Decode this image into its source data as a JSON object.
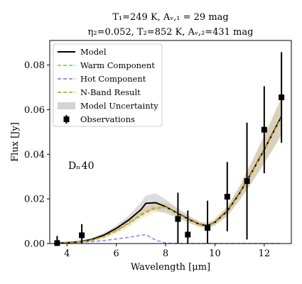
{
  "chart_data": {
    "type": "line",
    "title_line1": "T₁=249 K, Aᵥ,₁ = 29 mag",
    "title_line2": "η₂=0.052, T₂=852 K, Aᵥ,₂=431 mag",
    "xlabel": "Wavelength [μm]",
    "ylabel": "Flux [Jy]",
    "xlim": [
      3.3,
      13.1
    ],
    "ylim": [
      0,
      0.091
    ],
    "xticks": [
      4,
      6,
      8,
      10,
      12
    ],
    "yticks": [
      0.0,
      0.02,
      0.04,
      0.06,
      0.08
    ],
    "ytick_labels": [
      "0.00",
      "0.02",
      "0.04",
      "0.06",
      "0.08"
    ],
    "annotation": "Dₙ 40",
    "legend_position": "top-left",
    "legend": [
      {
        "label": "Model",
        "style": "solid",
        "color": "#000000"
      },
      {
        "label": "Warm Component",
        "style": "dashed",
        "color": "#7fc97f"
      },
      {
        "label": "Hot Component",
        "style": "dashed",
        "color": "#8888ee"
      },
      {
        "label": "N-Band Result",
        "style": "dashed",
        "color": "#d4a017"
      },
      {
        "label": "Model Uncertainty",
        "style": "patch",
        "color": "#c0c0c0"
      },
      {
        "label": "Observations",
        "style": "errorbar",
        "color": "#000000"
      }
    ],
    "model": {
      "x": [
        3.6,
        4.0,
        4.5,
        5.0,
        5.5,
        6.0,
        6.5,
        7.0,
        7.2,
        7.6,
        8.0,
        8.5,
        9.0,
        9.4,
        9.7,
        10.0,
        10.5,
        11.0,
        11.5,
        12.0,
        12.7
      ],
      "y": [
        0.0002,
        0.0004,
        0.0008,
        0.0018,
        0.0038,
        0.0068,
        0.0105,
        0.0152,
        0.018,
        0.0183,
        0.0165,
        0.0135,
        0.0105,
        0.0085,
        0.008,
        0.0095,
        0.0145,
        0.0225,
        0.032,
        0.042,
        0.057
      ]
    },
    "warm_component": {
      "x": [
        3.6,
        4.0,
        4.5,
        5.0,
        5.5,
        6.0,
        6.5,
        7.0,
        7.5,
        8.0,
        8.5,
        9.0,
        9.4,
        9.7,
        10.0,
        10.5,
        11.0,
        11.5,
        12.0,
        12.7
      ],
      "y": [
        0.0001,
        0.0003,
        0.0006,
        0.0014,
        0.003,
        0.0055,
        0.0088,
        0.0125,
        0.0155,
        0.0162,
        0.0135,
        0.0105,
        0.0085,
        0.008,
        0.0095,
        0.0145,
        0.0225,
        0.032,
        0.042,
        0.057
      ]
    },
    "hot_component": {
      "x": [
        3.6,
        4.5,
        5.5,
        6.5,
        7.2,
        7.6,
        8.0,
        8.5,
        9.0,
        10.0,
        11.0,
        12.0,
        12.7
      ],
      "y": [
        0.0001,
        0.0004,
        0.0013,
        0.0028,
        0.004,
        0.0015,
        0.0002,
        0.0,
        0.0,
        0.0,
        0.0,
        0.0,
        0.0
      ]
    },
    "nband_result": {
      "x": [
        3.6,
        4.0,
        4.5,
        5.0,
        5.5,
        6.0,
        6.5,
        7.0,
        7.5,
        8.0,
        8.5,
        9.0,
        9.4,
        9.7,
        10.0,
        10.5,
        11.0,
        11.5,
        12.0,
        12.7
      ],
      "y": [
        0.0002,
        0.0003,
        0.0007,
        0.0015,
        0.0032,
        0.0058,
        0.0092,
        0.013,
        0.0158,
        0.0163,
        0.0133,
        0.0103,
        0.0084,
        0.0079,
        0.0094,
        0.0143,
        0.0222,
        0.0318,
        0.0418,
        0.0565
      ]
    },
    "model_uncertainty": {
      "x": [
        3.6,
        4.0,
        4.5,
        5.0,
        5.5,
        6.0,
        6.5,
        7.0,
        7.2,
        7.6,
        8.0,
        8.5,
        9.0,
        9.4,
        9.7,
        10.0,
        10.5,
        11.0,
        11.5,
        12.0,
        12.7
      ],
      "lower": [
        0.0,
        0.0002,
        0.0005,
        0.0013,
        0.0029,
        0.0055,
        0.0087,
        0.0128,
        0.0145,
        0.0148,
        0.0135,
        0.0114,
        0.009,
        0.0074,
        0.007,
        0.0082,
        0.0125,
        0.0195,
        0.0275,
        0.036,
        0.049
      ],
      "upper": [
        0.0004,
        0.0006,
        0.0012,
        0.0024,
        0.0048,
        0.0082,
        0.0125,
        0.0185,
        0.0215,
        0.0225,
        0.0198,
        0.0158,
        0.0122,
        0.0097,
        0.009,
        0.0108,
        0.0165,
        0.0255,
        0.0365,
        0.048,
        0.065
      ]
    },
    "nband_uncertainty": {
      "x": [
        3.6,
        4.0,
        4.5,
        5.0,
        5.5,
        6.0,
        6.5,
        7.0,
        7.5,
        8.0,
        8.5,
        9.0,
        9.4,
        9.7,
        10.0,
        10.5,
        11.0,
        11.5,
        12.0,
        12.7
      ],
      "lower": [
        0.0,
        0.0001,
        0.0003,
        0.0009,
        0.0022,
        0.0043,
        0.0073,
        0.011,
        0.0138,
        0.0144,
        0.0118,
        0.0091,
        0.0072,
        0.0067,
        0.0078,
        0.012,
        0.019,
        0.0272,
        0.0355,
        0.048
      ],
      "upper": [
        0.0004,
        0.0006,
        0.0012,
        0.0022,
        0.0043,
        0.0074,
        0.0113,
        0.0155,
        0.0182,
        0.0186,
        0.0152,
        0.0118,
        0.0098,
        0.0093,
        0.0112,
        0.0168,
        0.026,
        0.0372,
        0.0488,
        0.066
      ]
    },
    "observations": {
      "x": [
        3.6,
        4.6,
        8.5,
        8.9,
        9.7,
        10.5,
        11.3,
        12.0,
        12.7
      ],
      "y": [
        0.0002,
        0.0037,
        0.011,
        0.004,
        0.007,
        0.021,
        0.028,
        0.051,
        0.0655
      ],
      "err": [
        0.0032,
        0.005,
        0.0118,
        0.0108,
        0.0122,
        0.0155,
        0.0262,
        0.0195,
        0.0203
      ]
    }
  }
}
